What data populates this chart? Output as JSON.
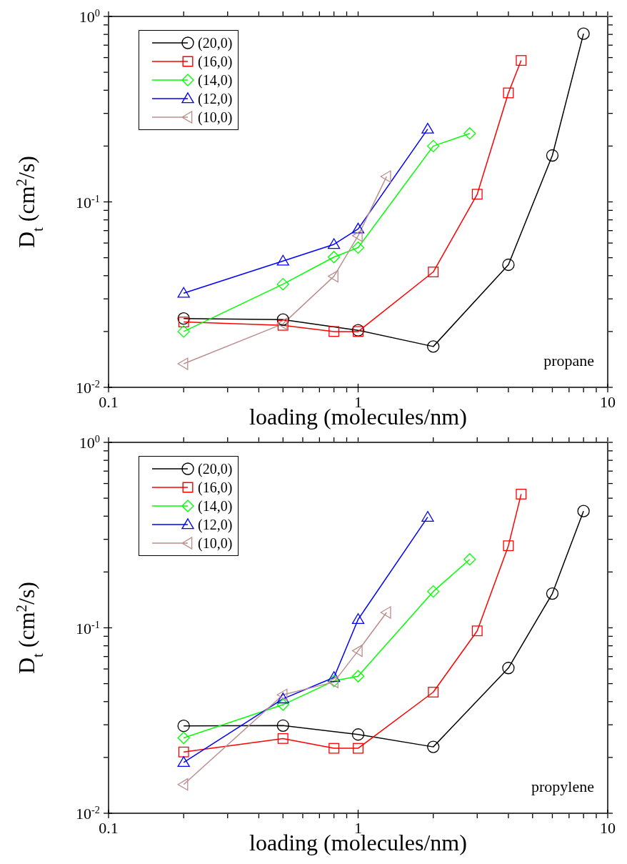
{
  "chart_data": [
    {
      "type": "line",
      "xlabel": "loading (molecules/nm)",
      "ylabel": "D$_{t}$ (cm$^{2}$/s)",
      "annotations": [
        "propane"
      ],
      "log": "xy",
      "legend": "top left",
      "line_style": "solid",
      "xlim": [
        0.1,
        10
      ],
      "ylim": [
        0.01,
        1
      ],
      "xticks": [
        {
          "value": 0.1,
          "label": "0.1"
        },
        {
          "value": 0.2,
          "label": null
        },
        {
          "value": 0.3,
          "label": null
        },
        {
          "value": 0.4,
          "label": null
        },
        {
          "value": 0.5,
          "label": null
        },
        {
          "value": 0.6,
          "label": null
        },
        {
          "value": 0.7,
          "label": null
        },
        {
          "value": 0.8,
          "label": null
        },
        {
          "value": 0.9,
          "label": null
        },
        {
          "value": 1,
          "label": "1"
        },
        {
          "value": 2,
          "label": null
        },
        {
          "value": 3,
          "label": null
        },
        {
          "value": 4,
          "label": null
        },
        {
          "value": 5,
          "label": null
        },
        {
          "value": 6,
          "label": null
        },
        {
          "value": 7,
          "label": null
        },
        {
          "value": 8,
          "label": null
        },
        {
          "value": 9,
          "label": null
        },
        {
          "value": 10,
          "label": "10"
        }
      ],
      "yticks": [
        {
          "value": 0.01,
          "label": "10$^{-2}$"
        },
        {
          "value": 0.02,
          "label": null
        },
        {
          "value": 0.03,
          "label": null
        },
        {
          "value": 0.04,
          "label": null
        },
        {
          "value": 0.05,
          "label": null
        },
        {
          "value": 0.06,
          "label": null
        },
        {
          "value": 0.07,
          "label": null
        },
        {
          "value": 0.08,
          "label": null
        },
        {
          "value": 0.09,
          "label": null
        },
        {
          "value": 0.1,
          "label": "10$^{-1}$"
        },
        {
          "value": 0.2,
          "label": null
        },
        {
          "value": 0.3,
          "label": null
        },
        {
          "value": 0.4,
          "label": null
        },
        {
          "value": 0.5,
          "label": null
        },
        {
          "value": 0.6,
          "label": null
        },
        {
          "value": 0.7,
          "label": null
        },
        {
          "value": 0.8,
          "label": null
        },
        {
          "value": 0.9,
          "label": null
        },
        {
          "value": 1,
          "label": "10$^{0}$"
        }
      ],
      "series": [
        {
          "name": "(20,0)",
          "color": "#000000",
          "marker": "circle",
          "x": [
            0.2,
            0.5,
            1,
            2,
            4,
            6,
            8
          ],
          "values": [
            0.0235,
            0.0232,
            0.0203,
            0.0166,
            0.0458,
            0.178,
            0.807
          ]
        },
        {
          "name": "(16,0)",
          "color": "#ff0000",
          "marker": "square",
          "x": [
            0.2,
            0.5,
            0.8,
            1,
            2,
            3,
            4,
            4.5
          ],
          "values": [
            0.0225,
            0.0216,
            0.02,
            0.02,
            0.0419,
            0.11,
            0.387,
            0.579
          ]
        },
        {
          "name": "(14,0)",
          "color": "#00ff00",
          "marker": "diamond",
          "x": [
            0.2,
            0.5,
            0.8,
            1,
            2,
            2.8
          ],
          "values": [
            0.02,
            0.036,
            0.0504,
            0.0567,
            0.2,
            0.234
          ]
        },
        {
          "name": "(12,0)",
          "color": "#0000ff",
          "marker": "triangle",
          "x": [
            0.2,
            0.5,
            0.8,
            1,
            1.9
          ],
          "values": [
            0.0322,
            0.048,
            0.059,
            0.0715,
            0.247
          ]
        },
        {
          "name": "(10,0)",
          "color": "#bc8f8f",
          "marker": "triangle-left",
          "x": [
            0.2,
            0.5,
            0.8,
            1,
            1.3
          ],
          "values": [
            0.0134,
            0.022,
            0.0397,
            0.0657,
            0.137
          ]
        }
      ]
    },
    {
      "type": "line",
      "xlabel": "loading (molecules/nm)",
      "ylabel": "D$_{t}$ (cm$^{2}$/s)",
      "annotations": [
        "propylene"
      ],
      "log": "xy",
      "legend": "top left",
      "line_style": "solid",
      "xlim": [
        0.1,
        10
      ],
      "ylim": [
        0.01,
        1
      ],
      "xticks": [
        {
          "value": 0.1,
          "label": "0.1"
        },
        {
          "value": 0.2,
          "label": null
        },
        {
          "value": 0.3,
          "label": null
        },
        {
          "value": 0.4,
          "label": null
        },
        {
          "value": 0.5,
          "label": null
        },
        {
          "value": 0.6,
          "label": null
        },
        {
          "value": 0.7,
          "label": null
        },
        {
          "value": 0.8,
          "label": null
        },
        {
          "value": 0.9,
          "label": null
        },
        {
          "value": 1,
          "label": "1"
        },
        {
          "value": 2,
          "label": null
        },
        {
          "value": 3,
          "label": null
        },
        {
          "value": 4,
          "label": null
        },
        {
          "value": 5,
          "label": null
        },
        {
          "value": 6,
          "label": null
        },
        {
          "value": 7,
          "label": null
        },
        {
          "value": 8,
          "label": null
        },
        {
          "value": 9,
          "label": null
        },
        {
          "value": 10,
          "label": "10"
        }
      ],
      "yticks": [
        {
          "value": 0.01,
          "label": "10$^{-2}$"
        },
        {
          "value": 0.02,
          "label": null
        },
        {
          "value": 0.03,
          "label": null
        },
        {
          "value": 0.04,
          "label": null
        },
        {
          "value": 0.05,
          "label": null
        },
        {
          "value": 0.06,
          "label": null
        },
        {
          "value": 0.07,
          "label": null
        },
        {
          "value": 0.08,
          "label": null
        },
        {
          "value": 0.09,
          "label": null
        },
        {
          "value": 0.1,
          "label": "10$^{-1}$"
        },
        {
          "value": 0.2,
          "label": null
        },
        {
          "value": 0.3,
          "label": null
        },
        {
          "value": 0.4,
          "label": null
        },
        {
          "value": 0.5,
          "label": null
        },
        {
          "value": 0.6,
          "label": null
        },
        {
          "value": 0.7,
          "label": null
        },
        {
          "value": 0.8,
          "label": null
        },
        {
          "value": 0.9,
          "label": null
        },
        {
          "value": 1,
          "label": "10$^{0}$"
        }
      ],
      "series": [
        {
          "name": "(20,0)",
          "color": "#000000",
          "marker": "circle",
          "x": [
            0.2,
            0.5,
            1,
            2,
            4,
            6,
            8
          ],
          "values": [
            0.0296,
            0.0297,
            0.0266,
            0.0228,
            0.0607,
            0.153,
            0.426
          ]
        },
        {
          "name": "(16,0)",
          "color": "#ff0000",
          "marker": "square",
          "x": [
            0.2,
            0.5,
            0.8,
            1,
            2,
            3,
            4,
            4.5
          ],
          "values": [
            0.0214,
            0.0253,
            0.0224,
            0.0224,
            0.045,
            0.0963,
            0.277,
            0.526
          ]
        },
        {
          "name": "(14,0)",
          "color": "#00ff00",
          "marker": "diamond",
          "x": [
            0.2,
            0.5,
            0.8,
            1,
            2,
            2.8
          ],
          "values": [
            0.0255,
            0.0385,
            0.0517,
            0.0548,
            0.157,
            0.234
          ]
        },
        {
          "name": "(12,0)",
          "color": "#0000ff",
          "marker": "triangle",
          "x": [
            0.2,
            0.5,
            0.8,
            1,
            1.9
          ],
          "values": [
            0.0188,
            0.0414,
            0.054,
            0.111,
            0.395
          ]
        },
        {
          "name": "(10,0)",
          "color": "#bc8f8f",
          "marker": "triangle-left",
          "x": [
            0.2,
            0.5,
            0.8,
            1,
            1.3
          ],
          "values": [
            0.0143,
            0.0435,
            0.051,
            0.0752,
            0.121
          ]
        }
      ]
    }
  ]
}
